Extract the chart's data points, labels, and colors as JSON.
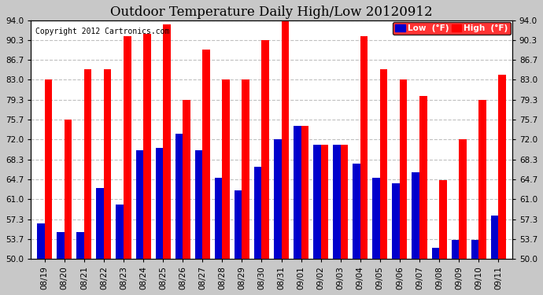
{
  "title": "Outdoor Temperature Daily High/Low 20120912",
  "copyright": "Copyright 2012 Cartronics.com",
  "categories": [
    "08/19",
    "08/20",
    "08/21",
    "08/22",
    "08/23",
    "08/24",
    "08/25",
    "08/26",
    "08/27",
    "08/28",
    "08/29",
    "08/30",
    "08/31",
    "09/01",
    "09/02",
    "09/03",
    "09/04",
    "09/05",
    "09/06",
    "09/07",
    "09/08",
    "09/09",
    "09/10",
    "09/11"
  ],
  "high_vals": [
    83.0,
    75.7,
    85.0,
    85.0,
    91.0,
    91.4,
    93.2,
    79.3,
    88.5,
    83.0,
    83.0,
    90.3,
    94.0,
    74.5,
    71.0,
    71.0,
    91.0,
    85.0,
    83.0,
    80.0,
    64.5,
    72.0,
    79.3,
    84.0
  ],
  "low_vals": [
    56.5,
    55.0,
    55.0,
    63.0,
    60.0,
    70.0,
    70.5,
    73.0,
    70.0,
    65.0,
    62.7,
    67.0,
    72.0,
    74.5,
    71.0,
    71.0,
    67.5,
    65.0,
    64.0,
    66.0,
    52.0,
    53.5,
    53.5,
    58.0
  ],
  "high_color": "#ff0000",
  "low_color": "#0000cc",
  "plot_bg": "#ffffff",
  "fig_bg": "#c8c8c8",
  "grid_color": "#c0c0c0",
  "yticks": [
    50.0,
    53.7,
    57.3,
    61.0,
    64.7,
    68.3,
    72.0,
    75.7,
    79.3,
    83.0,
    86.7,
    90.3,
    94.0
  ],
  "ylim": [
    50.0,
    94.0
  ],
  "bar_width": 0.38,
  "title_fontsize": 12,
  "tick_fontsize": 7.5,
  "copyright_fontsize": 7,
  "legend_low_label": "Low  (°F)",
  "legend_high_label": "High  (°F)"
}
